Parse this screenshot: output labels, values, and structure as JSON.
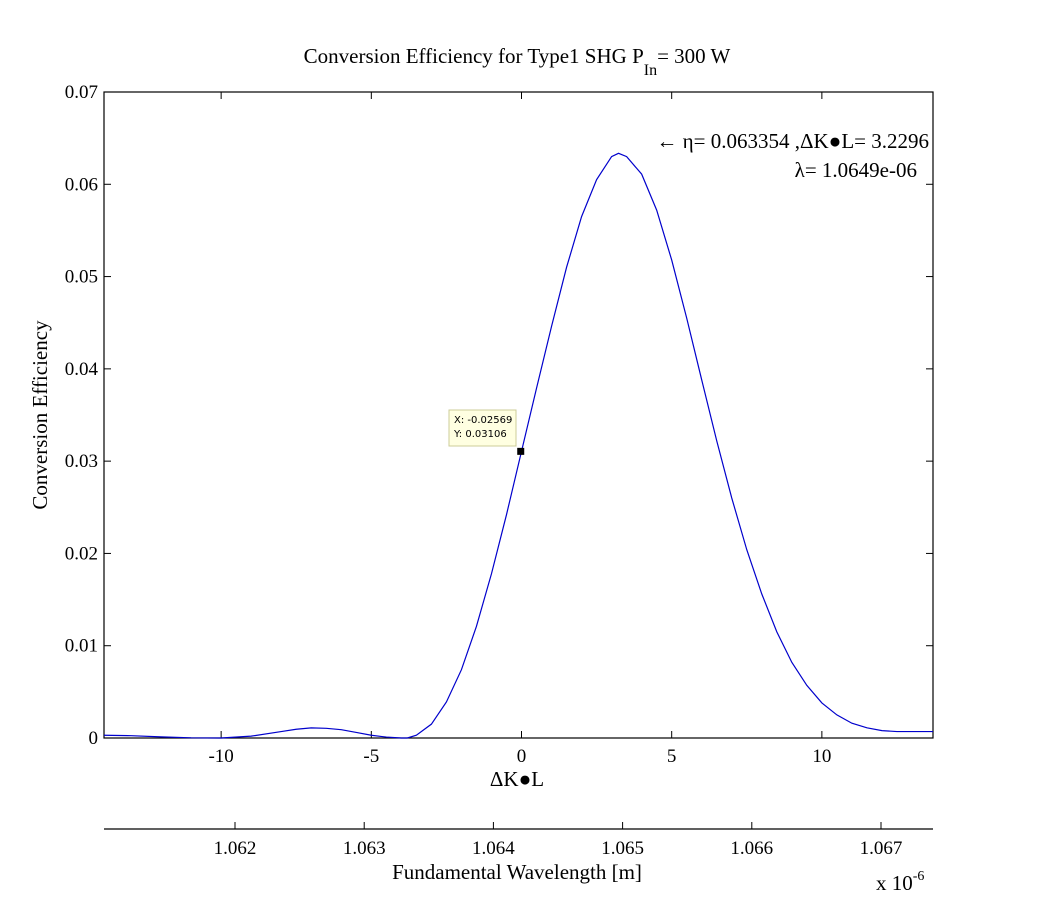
{
  "chart_data": {
    "type": "line",
    "title_prefix": "Conversion Efficiency for Type1 SHG P",
    "title_subscript": "In",
    "title_suffix": "= 300 W",
    "ylabel": "Conversion Efficiency",
    "xlabel": "ΔK●L",
    "ylim": [
      0,
      0.07
    ],
    "xlim": [
      -13.9,
      13.7
    ],
    "y_ticks": [
      "0",
      "0.01",
      "0.02",
      "0.03",
      "0.04",
      "0.05",
      "0.06",
      "0.07"
    ],
    "x_ticks": [
      "-10",
      "-5",
      "0",
      "5",
      "10"
    ],
    "secondary_x": {
      "xlabel": "Fundamental Wavelength [m]",
      "ticks": [
        "1.062",
        "1.063",
        "1.064",
        "1.065",
        "1.066",
        "1.067"
      ],
      "exponent": "x 10",
      "exponent_power": "-6"
    },
    "series": [
      {
        "color": "#0000cc",
        "x": [
          -13.9,
          -13,
          -12,
          -11,
          -10,
          -9,
          -8,
          -7.5,
          -7,
          -6.5,
          -6,
          -5.5,
          -5,
          -4.5,
          -4,
          -3.8,
          -3.5,
          -3,
          -2.5,
          -2,
          -1.5,
          -1,
          -0.5,
          0,
          0.5,
          1,
          1.5,
          2,
          2.5,
          3,
          3.23,
          3.5,
          4,
          4.5,
          5,
          5.5,
          6,
          6.5,
          7,
          7.5,
          8,
          8.5,
          9,
          9.5,
          10,
          10.5,
          11,
          11.5,
          12,
          12.5,
          13,
          13.7
        ],
        "y": [
          0.0003,
          0.00025,
          0.00012,
          2e-05,
          0.0,
          0.0002,
          0.0007,
          0.00095,
          0.0011,
          0.00105,
          0.0009,
          0.0006,
          0.0003,
          0.0001,
          0.0,
          0.0,
          0.0003,
          0.0015,
          0.0039,
          0.0074,
          0.0121,
          0.0178,
          0.0242,
          0.03106,
          0.0379,
          0.0446,
          0.051,
          0.0565,
          0.0605,
          0.063,
          0.063354,
          0.063,
          0.0611,
          0.0572,
          0.0518,
          0.0455,
          0.0388,
          0.0322,
          0.026,
          0.0204,
          0.0156,
          0.0115,
          0.0082,
          0.0057,
          0.0038,
          0.0025,
          0.0016,
          0.0011,
          0.0008,
          0.0007,
          0.0007,
          0.0007
        ]
      }
    ],
    "annotation": {
      "line1": "← η= 0.063354 ,ΔK●L= 3.2296",
      "line2": "λ= 1.0649e-06"
    },
    "datatip": {
      "x_text": "X: -0.02569",
      "y_text": "Y: 0.03106",
      "x": -0.02569,
      "y": 0.03106
    }
  }
}
